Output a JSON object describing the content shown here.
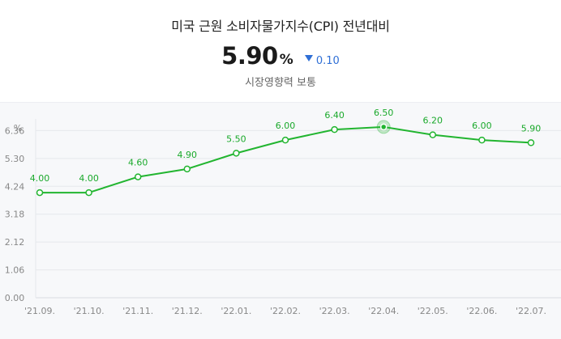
{
  "header": {
    "title": "미국 근원 소비자물가지수(CPI) 전년대비",
    "value": "5.90",
    "unit": "%",
    "change": "0.10",
    "change_direction": "down",
    "impact": "시장영향력 보통"
  },
  "colors": {
    "line": "#22b530",
    "down": "#2f6fd6",
    "panel_bg": "#f7f8fa"
  },
  "chart_data": {
    "type": "line",
    "ylabel": "%",
    "y_ticks": [
      "0.00",
      "1.06",
      "2.12",
      "3.18",
      "4.24",
      "5.30",
      "6.36"
    ],
    "ylim": [
      0,
      7.42
    ],
    "categories": [
      "'21.09.",
      "'21.10.",
      "'21.11.",
      "'21.12.",
      "'22.01.",
      "'22.02.",
      "'22.03.",
      "'22.04.",
      "'22.05.",
      "'22.06.",
      "'22.07."
    ],
    "data_labels": [
      "4.00",
      "4.00",
      "4.60",
      "4.90",
      "5.50",
      "6.00",
      "6.40",
      "6.50",
      "6.20",
      "6.00",
      "5.90"
    ],
    "series": [
      {
        "values": [
          4.0,
          4.0,
          4.6,
          4.9,
          5.5,
          6.0,
          6.4,
          6.5,
          6.2,
          6.0,
          5.9
        ]
      }
    ],
    "highlight_index": 7,
    "grid": true
  }
}
